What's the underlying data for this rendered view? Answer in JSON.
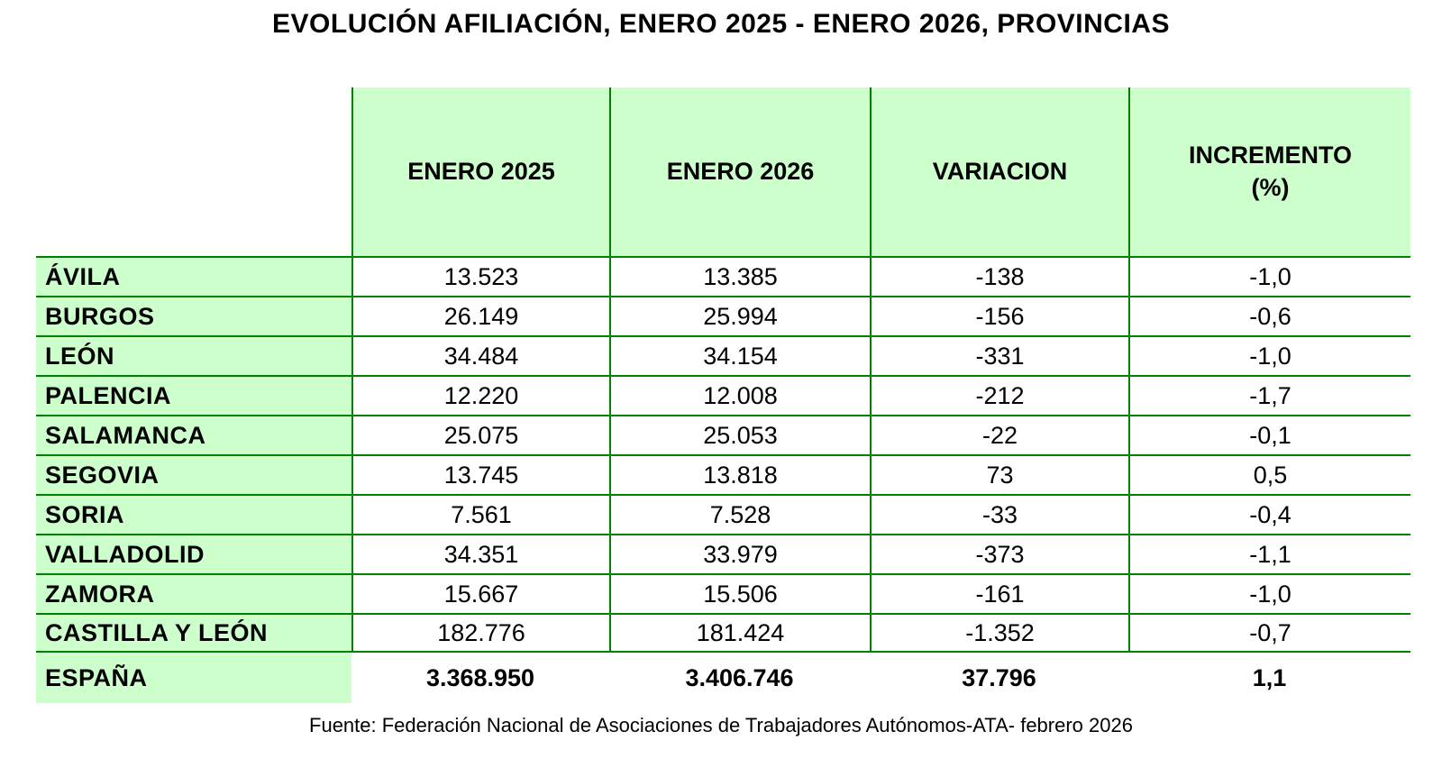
{
  "title": "EVOLUCIÓN AFILIACIÓN, ENERO 2025 - ENERO 2026, PROVINCIAS",
  "source": "Fuente: Federación Nacional de Asociaciones de Trabajadores Autónomos-ATA- febrero 2026",
  "colors": {
    "cell_fill_green": "#ccffcc",
    "border_green": "#008000",
    "text": "#000000"
  },
  "chart_data": {
    "type": "table",
    "title": "EVOLUCIÓN AFILIACIÓN, ENERO 2025 - ENERO 2026, PROVINCIAS",
    "columns": [
      "ENERO 2025",
      "ENERO 2026",
      "VARIACION",
      "INCREMENTO (%)"
    ],
    "rows": [
      {
        "label": "ÁVILA",
        "enero_2025": "13.523",
        "enero_2026": "13.385",
        "variacion": "-138",
        "incremento_pct": "-1,0"
      },
      {
        "label": "BURGOS",
        "enero_2025": "26.149",
        "enero_2026": "25.994",
        "variacion": "-156",
        "incremento_pct": "-0,6"
      },
      {
        "label": "LEÓN",
        "enero_2025": "34.484",
        "enero_2026": "34.154",
        "variacion": "-331",
        "incremento_pct": "-1,0"
      },
      {
        "label": "PALENCIA",
        "enero_2025": "12.220",
        "enero_2026": "12.008",
        "variacion": "-212",
        "incremento_pct": "-1,7"
      },
      {
        "label": "SALAMANCA",
        "enero_2025": "25.075",
        "enero_2026": "25.053",
        "variacion": "-22",
        "incremento_pct": "-0,1"
      },
      {
        "label": "SEGOVIA",
        "enero_2025": "13.745",
        "enero_2026": "13.818",
        "variacion": "73",
        "incremento_pct": "0,5"
      },
      {
        "label": "SORIA",
        "enero_2025": "7.561",
        "enero_2026": "7.528",
        "variacion": "-33",
        "incremento_pct": "-0,4"
      },
      {
        "label": "VALLADOLID",
        "enero_2025": "34.351",
        "enero_2026": "33.979",
        "variacion": "-373",
        "incremento_pct": "-1,1"
      },
      {
        "label": "ZAMORA",
        "enero_2025": "15.667",
        "enero_2026": "15.506",
        "variacion": "-161",
        "incremento_pct": "-1,0"
      },
      {
        "label": "CASTILLA Y LEÓN",
        "enero_2025": "182.776",
        "enero_2026": "181.424",
        "variacion": "-1.352",
        "incremento_pct": "-0,7"
      }
    ],
    "total_row": {
      "label": "ESPAÑA",
      "enero_2025": "3.368.950",
      "enero_2026": "3.406.746",
      "variacion": "37.796",
      "incremento_pct": "1,1"
    }
  }
}
